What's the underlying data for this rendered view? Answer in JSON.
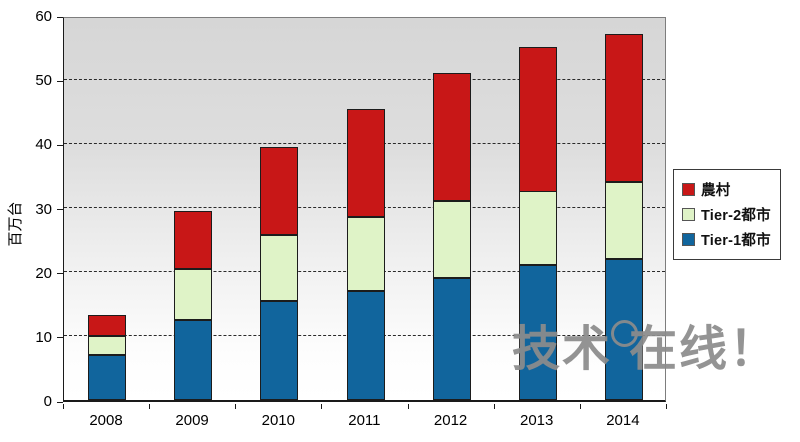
{
  "watermark": {
    "text_left": "技术",
    "text_right": "在线！"
  },
  "chart_data": {
    "type": "bar",
    "stacked": true,
    "title": "",
    "xlabel": "",
    "ylabel": "百万台",
    "categories": [
      "2008",
      "2009",
      "2010",
      "2011",
      "2012",
      "2013",
      "2014"
    ],
    "series": [
      {
        "key": "tier1",
        "name": "Tier-1都市",
        "color": "#11659D",
        "values": [
          7.0,
          12.5,
          15.5,
          17.0,
          19.0,
          21.0,
          22.0
        ]
      },
      {
        "key": "tier2",
        "name": "Tier-2都市",
        "color": "#DFF3C7",
        "values": [
          3.0,
          8.0,
          10.2,
          11.5,
          12.0,
          11.5,
          12.0
        ]
      },
      {
        "key": "rural",
        "name": "農村",
        "color": "#C81717",
        "values": [
          3.3,
          9.0,
          13.8,
          16.8,
          20.0,
          22.5,
          23.0
        ]
      }
    ],
    "totals": [
      13.3,
      29.5,
      39.5,
      45.3,
      51.0,
      55.0,
      57.0
    ],
    "ylim": [
      0,
      60
    ],
    "yticks": [
      0,
      10,
      20,
      30,
      40,
      50,
      60
    ],
    "grid": "dashed-horizontal",
    "legend_position": "right",
    "legend_order_top_to_bottom": [
      "農村",
      "Tier-2都市",
      "Tier-1都市"
    ]
  }
}
